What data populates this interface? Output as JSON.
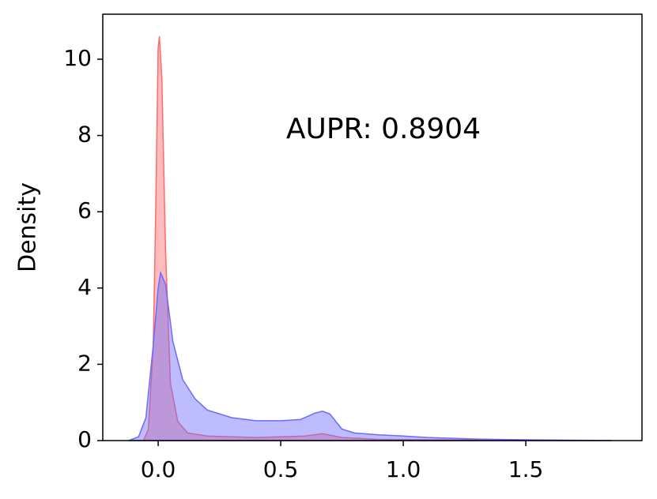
{
  "chart_data": {
    "type": "area",
    "ylabel": "Density",
    "annotation": "AUPR: 0.8904",
    "xlim": [
      -0.226,
      1.974
    ],
    "ylim": [
      0,
      11.18
    ],
    "xticks": [
      {
        "value": 0,
        "label": "0.0"
      },
      0.5,
      {
        "value": 1,
        "label": "1.0"
      },
      1.5
    ],
    "yticks": [
      0,
      2,
      4,
      6,
      8,
      10
    ],
    "series": [
      {
        "color": "#ff6b6b",
        "x": [
          -0.06,
          -0.04,
          -0.02,
          -0.01,
          0,
          0.005,
          0.015,
          0.03,
          0.05,
          0.08,
          0.12,
          0.2,
          0.4,
          0.6,
          0.67,
          0.75,
          0.9,
          1.1,
          1.5,
          1.85
        ],
        "values": [
          0,
          0.3,
          2.5,
          6,
          10.3,
          10.6,
          9.5,
          5,
          1.5,
          0.5,
          0.2,
          0.12,
          0.08,
          0.12,
          0.18,
          0.08,
          0.03,
          0.02,
          0.01,
          0
        ]
      },
      {
        "color": "#6b6bff",
        "x": [
          -0.12,
          -0.08,
          -0.05,
          -0.02,
          0,
          0.01,
          0.03,
          0.06,
          0.1,
          0.15,
          0.2,
          0.3,
          0.4,
          0.5,
          0.58,
          0.64,
          0.67,
          0.7,
          0.75,
          0.8,
          0.9,
          1.0,
          1.1,
          1.3,
          1.5,
          1.85
        ],
        "values": [
          0,
          0.1,
          0.6,
          2.5,
          4.0,
          4.4,
          4.1,
          2.6,
          1.6,
          1.1,
          0.8,
          0.6,
          0.52,
          0.52,
          0.55,
          0.72,
          0.77,
          0.7,
          0.3,
          0.2,
          0.15,
          0.12,
          0.08,
          0.04,
          0.02,
          0
        ]
      }
    ]
  }
}
